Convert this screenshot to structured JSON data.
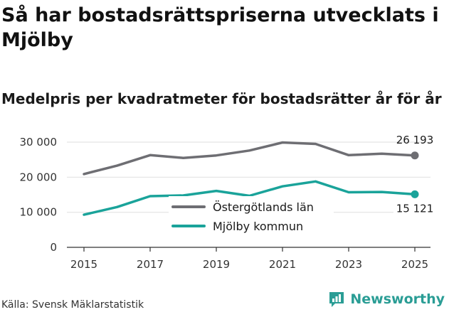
{
  "header": {
    "title": "Så har bostadsrättspriserna utvecklats i Mjölby",
    "subtitle": "Medelpris per kvadratmeter för bostadsrätter år för år"
  },
  "footer": {
    "source": "Källa: Svensk Mäklarstatistik",
    "brand": "Newsworthy"
  },
  "colors": {
    "series_gray": "#6e6e73",
    "series_teal": "#1aa39a",
    "grid": "#e3e3e3",
    "axis": "#333333",
    "brand": "#2a9d95"
  },
  "chart_data": {
    "type": "line",
    "title": "Medelpris per kvadratmeter för bostadsrätter år för år",
    "xlabel": "",
    "ylabel": "",
    "x": [
      2015,
      2016,
      2017,
      2018,
      2019,
      2020,
      2021,
      2022,
      2023,
      2024,
      2025
    ],
    "xticks": [
      "2015",
      "2017",
      "2019",
      "2021",
      "2023",
      "2025"
    ],
    "xtick_values": [
      2015,
      2017,
      2019,
      2021,
      2023,
      2025
    ],
    "yticks": [
      "0",
      "10 000",
      "20 000",
      "30 000"
    ],
    "ytick_values": [
      0,
      10000,
      20000,
      30000
    ],
    "ylim": [
      0,
      30000
    ],
    "xlim": [
      2015,
      2025
    ],
    "grid": true,
    "legend_position": "center",
    "series": [
      {
        "name": "Östergötlands län",
        "color_key": "series_gray",
        "values": [
          20900,
          23300,
          26300,
          25500,
          26200,
          27600,
          29900,
          29500,
          26300,
          26700,
          26193
        ],
        "end_label": "26 193"
      },
      {
        "name": "Mjölby kommun",
        "color_key": "series_teal",
        "values": [
          9300,
          11500,
          14600,
          14800,
          16100,
          14700,
          17400,
          18800,
          15700,
          15800,
          15121
        ],
        "end_label": "15 121"
      }
    ]
  }
}
